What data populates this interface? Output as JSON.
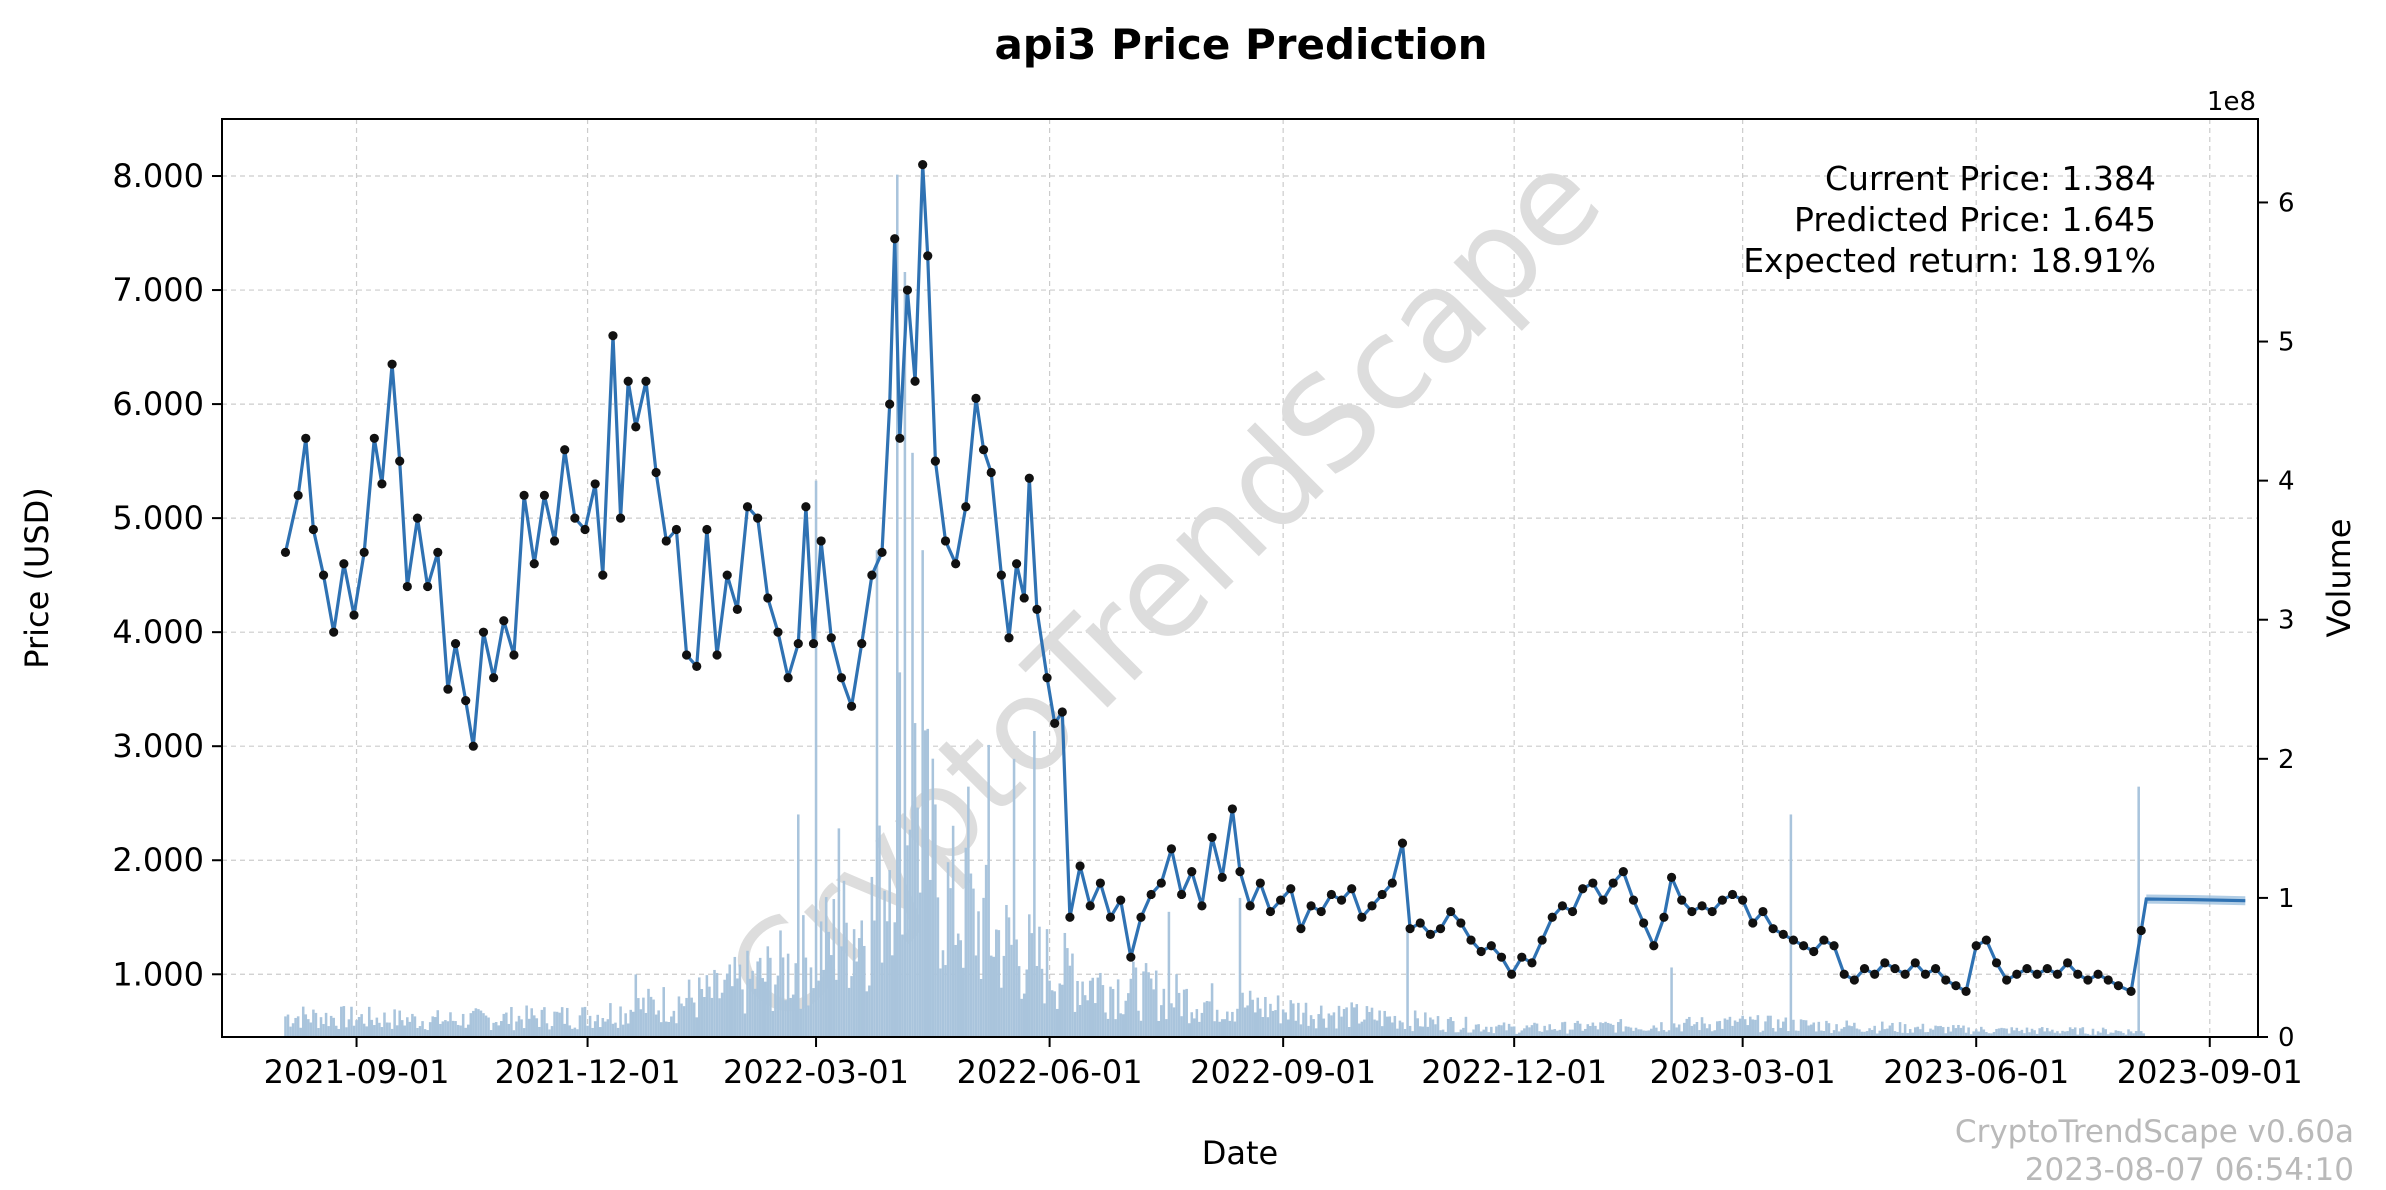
{
  "chart_data": {
    "type": "line",
    "title": "api3 Price Prediction",
    "xlabel": "Date",
    "ylabel": "Price (USD)",
    "y2label": "Volume",
    "y2_multiplier_label": "1e8",
    "x_range": [
      "2021-07-10",
      "2023-09-20"
    ],
    "ylim": [
      0.45,
      8.5
    ],
    "y2lim": [
      0,
      6.6
    ],
    "y_ticks": [
      1,
      2,
      3,
      4,
      5,
      6,
      7,
      8
    ],
    "y_tick_labels": [
      "1.000",
      "2.000",
      "3.000",
      "4.000",
      "5.000",
      "6.000",
      "7.000",
      "8.000"
    ],
    "y2_ticks": [
      0,
      1,
      2,
      3,
      4,
      5,
      6
    ],
    "y2_tick_labels": [
      "0",
      "1",
      "2",
      "3",
      "4",
      "5",
      "6"
    ],
    "x_ticks": [
      "2021-09-01",
      "2021-12-01",
      "2022-03-01",
      "2022-06-01",
      "2022-09-01",
      "2022-12-01",
      "2023-03-01",
      "2023-06-01",
      "2023-09-01"
    ],
    "grid": true,
    "price_series": {
      "name": "Price",
      "start_date": "2021-08-04",
      "end_date": "2023-08-06",
      "points": [
        [
          "2021-08-04",
          4.7
        ],
        [
          "2021-08-09",
          5.2
        ],
        [
          "2021-08-12",
          5.7
        ],
        [
          "2021-08-15",
          4.9
        ],
        [
          "2021-08-19",
          4.5
        ],
        [
          "2021-08-23",
          4.0
        ],
        [
          "2021-08-27",
          4.6
        ],
        [
          "2021-08-31",
          4.15
        ],
        [
          "2021-09-04",
          4.7
        ],
        [
          "2021-09-08",
          5.7
        ],
        [
          "2021-09-11",
          5.3
        ],
        [
          "2021-09-15",
          6.35
        ],
        [
          "2021-09-18",
          5.5
        ],
        [
          "2021-09-21",
          4.4
        ],
        [
          "2021-09-25",
          5.0
        ],
        [
          "2021-09-29",
          4.4
        ],
        [
          "2021-10-03",
          4.7
        ],
        [
          "2021-10-07",
          3.5
        ],
        [
          "2021-10-10",
          3.9
        ],
        [
          "2021-10-14",
          3.4
        ],
        [
          "2021-10-17",
          3.0
        ],
        [
          "2021-10-21",
          4.0
        ],
        [
          "2021-10-25",
          3.6
        ],
        [
          "2021-10-29",
          4.1
        ],
        [
          "2021-11-02",
          3.8
        ],
        [
          "2021-11-06",
          5.2
        ],
        [
          "2021-11-10",
          4.6
        ],
        [
          "2021-11-14",
          5.2
        ],
        [
          "2021-11-18",
          4.8
        ],
        [
          "2021-11-22",
          5.6
        ],
        [
          "2021-11-26",
          5.0
        ],
        [
          "2021-11-30",
          4.9
        ],
        [
          "2021-12-04",
          5.3
        ],
        [
          "2021-12-07",
          4.5
        ],
        [
          "2021-12-11",
          6.6
        ],
        [
          "2021-12-14",
          5.0
        ],
        [
          "2021-12-17",
          6.2
        ],
        [
          "2021-12-20",
          5.8
        ],
        [
          "2021-12-24",
          6.2
        ],
        [
          "2021-12-28",
          5.4
        ],
        [
          "2022-01-01",
          4.8
        ],
        [
          "2022-01-05",
          4.9
        ],
        [
          "2022-01-09",
          3.8
        ],
        [
          "2022-01-13",
          3.7
        ],
        [
          "2022-01-17",
          4.9
        ],
        [
          "2022-01-21",
          3.8
        ],
        [
          "2022-01-25",
          4.5
        ],
        [
          "2022-01-29",
          4.2
        ],
        [
          "2022-02-02",
          5.1
        ],
        [
          "2022-02-06",
          5.0
        ],
        [
          "2022-02-10",
          4.3
        ],
        [
          "2022-02-14",
          4.0
        ],
        [
          "2022-02-18",
          3.6
        ],
        [
          "2022-02-22",
          3.9
        ],
        [
          "2022-02-25",
          5.1
        ],
        [
          "2022-02-28",
          3.9
        ],
        [
          "2022-03-03",
          4.8
        ],
        [
          "2022-03-07",
          3.95
        ],
        [
          "2022-03-11",
          3.6
        ],
        [
          "2022-03-15",
          3.35
        ],
        [
          "2022-03-19",
          3.9
        ],
        [
          "2022-03-23",
          4.5
        ],
        [
          "2022-03-27",
          4.7
        ],
        [
          "2022-03-30",
          6.0
        ],
        [
          "2022-04-01",
          7.45
        ],
        [
          "2022-04-03",
          5.7
        ],
        [
          "2022-04-06",
          7.0
        ],
        [
          "2022-04-09",
          6.2
        ],
        [
          "2022-04-12",
          8.1
        ],
        [
          "2022-04-14",
          7.3
        ],
        [
          "2022-04-17",
          5.5
        ],
        [
          "2022-04-21",
          4.8
        ],
        [
          "2022-04-25",
          4.6
        ],
        [
          "2022-04-29",
          5.1
        ],
        [
          "2022-05-03",
          6.05
        ],
        [
          "2022-05-06",
          5.6
        ],
        [
          "2022-05-09",
          5.4
        ],
        [
          "2022-05-13",
          4.5
        ],
        [
          "2022-05-16",
          3.95
        ],
        [
          "2022-05-19",
          4.6
        ],
        [
          "2022-05-22",
          4.3
        ],
        [
          "2022-05-24",
          5.35
        ],
        [
          "2022-05-27",
          4.2
        ],
        [
          "2022-05-31",
          3.6
        ],
        [
          "2022-06-03",
          3.2
        ],
        [
          "2022-06-06",
          3.3
        ],
        [
          "2022-06-09",
          1.5
        ],
        [
          "2022-06-13",
          1.95
        ],
        [
          "2022-06-17",
          1.6
        ],
        [
          "2022-06-21",
          1.8
        ],
        [
          "2022-06-25",
          1.5
        ],
        [
          "2022-06-29",
          1.65
        ],
        [
          "2022-07-03",
          1.15
        ],
        [
          "2022-07-07",
          1.5
        ],
        [
          "2022-07-11",
          1.7
        ],
        [
          "2022-07-15",
          1.8
        ],
        [
          "2022-07-19",
          2.1
        ],
        [
          "2022-07-23",
          1.7
        ],
        [
          "2022-07-27",
          1.9
        ],
        [
          "2022-07-31",
          1.6
        ],
        [
          "2022-08-04",
          2.2
        ],
        [
          "2022-08-08",
          1.85
        ],
        [
          "2022-08-12",
          2.45
        ],
        [
          "2022-08-15",
          1.9
        ],
        [
          "2022-08-19",
          1.6
        ],
        [
          "2022-08-23",
          1.8
        ],
        [
          "2022-08-27",
          1.55
        ],
        [
          "2022-08-31",
          1.65
        ],
        [
          "2022-09-04",
          1.75
        ],
        [
          "2022-09-08",
          1.4
        ],
        [
          "2022-09-12",
          1.6
        ],
        [
          "2022-09-16",
          1.55
        ],
        [
          "2022-09-20",
          1.7
        ],
        [
          "2022-09-24",
          1.65
        ],
        [
          "2022-09-28",
          1.75
        ],
        [
          "2022-10-02",
          1.5
        ],
        [
          "2022-10-06",
          1.6
        ],
        [
          "2022-10-10",
          1.7
        ],
        [
          "2022-10-14",
          1.8
        ],
        [
          "2022-10-18",
          2.15
        ],
        [
          "2022-10-21",
          1.4
        ],
        [
          "2022-10-25",
          1.45
        ],
        [
          "2022-10-29",
          1.35
        ],
        [
          "2022-11-02",
          1.4
        ],
        [
          "2022-11-06",
          1.55
        ],
        [
          "2022-11-10",
          1.45
        ],
        [
          "2022-11-14",
          1.3
        ],
        [
          "2022-11-18",
          1.2
        ],
        [
          "2022-11-22",
          1.25
        ],
        [
          "2022-11-26",
          1.15
        ],
        [
          "2022-11-30",
          1.0
        ],
        [
          "2022-12-04",
          1.15
        ],
        [
          "2022-12-08",
          1.1
        ],
        [
          "2022-12-12",
          1.3
        ],
        [
          "2022-12-16",
          1.5
        ],
        [
          "2022-12-20",
          1.6
        ],
        [
          "2022-12-24",
          1.55
        ],
        [
          "2022-12-28",
          1.75
        ],
        [
          "2023-01-01",
          1.8
        ],
        [
          "2023-01-05",
          1.65
        ],
        [
          "2023-01-09",
          1.8
        ],
        [
          "2023-01-13",
          1.9
        ],
        [
          "2023-01-17",
          1.65
        ],
        [
          "2023-01-21",
          1.45
        ],
        [
          "2023-01-25",
          1.25
        ],
        [
          "2023-01-29",
          1.5
        ],
        [
          "2023-02-01",
          1.85
        ],
        [
          "2023-02-05",
          1.65
        ],
        [
          "2023-02-09",
          1.55
        ],
        [
          "2023-02-13",
          1.6
        ],
        [
          "2023-02-17",
          1.55
        ],
        [
          "2023-02-21",
          1.65
        ],
        [
          "2023-02-25",
          1.7
        ],
        [
          "2023-03-01",
          1.65
        ],
        [
          "2023-03-05",
          1.45
        ],
        [
          "2023-03-09",
          1.55
        ],
        [
          "2023-03-13",
          1.4
        ],
        [
          "2023-03-17",
          1.35
        ],
        [
          "2023-03-21",
          1.3
        ],
        [
          "2023-03-25",
          1.25
        ],
        [
          "2023-03-29",
          1.2
        ],
        [
          "2023-04-02",
          1.3
        ],
        [
          "2023-04-06",
          1.25
        ],
        [
          "2023-04-10",
          1.0
        ],
        [
          "2023-04-14",
          0.95
        ],
        [
          "2023-04-18",
          1.05
        ],
        [
          "2023-04-22",
          1.0
        ],
        [
          "2023-04-26",
          1.1
        ],
        [
          "2023-04-30",
          1.05
        ],
        [
          "2023-05-04",
          1.0
        ],
        [
          "2023-05-08",
          1.1
        ],
        [
          "2023-05-12",
          1.0
        ],
        [
          "2023-05-16",
          1.05
        ],
        [
          "2023-05-20",
          0.95
        ],
        [
          "2023-05-24",
          0.9
        ],
        [
          "2023-05-28",
          0.85
        ],
        [
          "2023-06-01",
          1.25
        ],
        [
          "2023-06-05",
          1.3
        ],
        [
          "2023-06-09",
          1.1
        ],
        [
          "2023-06-13",
          0.95
        ],
        [
          "2023-06-17",
          1.0
        ],
        [
          "2023-06-21",
          1.05
        ],
        [
          "2023-06-25",
          1.0
        ],
        [
          "2023-06-29",
          1.05
        ],
        [
          "2023-07-03",
          1.0
        ],
        [
          "2023-07-07",
          1.1
        ],
        [
          "2023-07-11",
          1.0
        ],
        [
          "2023-07-15",
          0.95
        ],
        [
          "2023-07-19",
          1.0
        ],
        [
          "2023-07-23",
          0.95
        ],
        [
          "2023-07-27",
          0.9
        ],
        [
          "2023-08-01",
          0.85
        ],
        [
          "2023-08-05",
          1.384
        ]
      ]
    },
    "prediction_series": {
      "name": "Prediction",
      "points": [
        [
          "2023-08-05",
          1.384
        ],
        [
          "2023-08-07",
          1.66
        ],
        [
          "2023-08-25",
          1.655
        ],
        [
          "2023-09-15",
          1.645
        ]
      ],
      "band": 0.04
    },
    "volume_series": {
      "name": "Volume",
      "unit": "1e8",
      "baseline": [
        [
          "2021-08-04",
          0.15
        ],
        [
          "2021-10-01",
          0.12
        ],
        [
          "2021-12-01",
          0.15
        ],
        [
          "2022-01-20",
          0.3
        ],
        [
          "2022-02-20",
          0.5
        ],
        [
          "2022-03-25",
          0.9
        ],
        [
          "2022-04-05",
          2.0
        ],
        [
          "2022-04-20",
          1.0
        ],
        [
          "2022-05-20",
          0.6
        ],
        [
          "2022-06-15",
          0.4
        ],
        [
          "2022-08-01",
          0.25
        ],
        [
          "2022-10-01",
          0.15
        ],
        [
          "2022-12-01",
          0.06
        ],
        [
          "2023-03-01",
          0.1
        ],
        [
          "2023-06-01",
          0.05
        ],
        [
          "2023-08-06",
          0.04
        ]
      ],
      "spikes": [
        [
          "2021-12-20",
          0.45
        ],
        [
          "2022-02-22",
          1.6
        ],
        [
          "2022-03-01",
          4.0
        ],
        [
          "2022-03-10",
          1.5
        ],
        [
          "2022-03-25",
          3.5
        ],
        [
          "2022-04-02",
          6.2
        ],
        [
          "2022-04-05",
          5.5
        ],
        [
          "2022-04-08",
          4.2
        ],
        [
          "2022-04-12",
          3.5
        ],
        [
          "2022-04-30",
          1.8
        ],
        [
          "2022-05-08",
          2.1
        ],
        [
          "2022-05-18",
          2.0
        ],
        [
          "2022-05-26",
          2.2
        ],
        [
          "2022-06-10",
          0.6
        ],
        [
          "2022-07-18",
          0.9
        ],
        [
          "2022-08-15",
          1.0
        ],
        [
          "2022-10-20",
          0.8
        ],
        [
          "2023-02-01",
          0.5
        ],
        [
          "2023-03-20",
          1.6
        ],
        [
          "2023-08-04",
          1.8
        ]
      ]
    },
    "annotations": [
      "Current Price: 1.384",
      "Predicted Price: 1.645",
      "Expected return: 18.91%"
    ],
    "watermark": "CryptoTrendScape",
    "footer": [
      "CryptoTrendScape v0.60a",
      "2023-08-07 06:54:10"
    ],
    "colors": {
      "line": "#2f72b3",
      "marker": "#111111",
      "volume": "#a9c4dc",
      "prediction_band": "#9dc0df",
      "grid": "#cccccc",
      "watermark": "#dddddd",
      "footer": "#b9b9b9"
    }
  }
}
